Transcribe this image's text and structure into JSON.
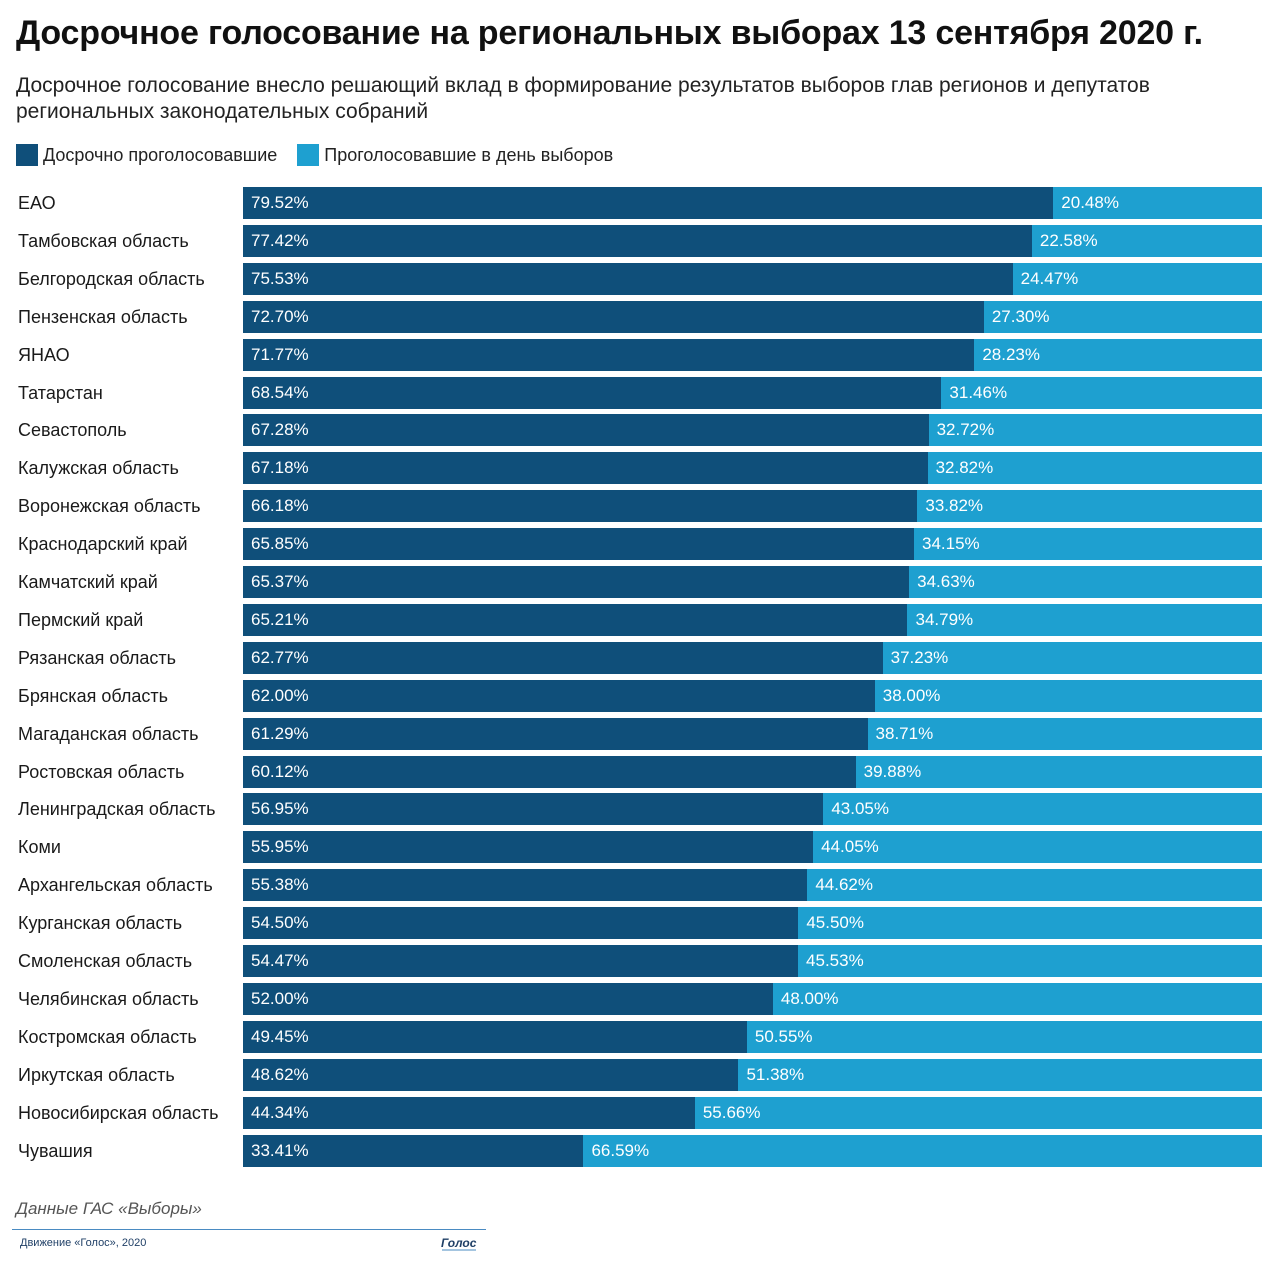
{
  "title": "Досрочное голосование на региональных выборах 13 сентября 2020 г.",
  "subtitle": "Досрочное голосование внесло решающий вклад в формирование результатов выборов глав регионов и депутатов региональных законодательных собраний",
  "colors": {
    "early": "#0f4f7a",
    "election_day": "#1ea0d0"
  },
  "legend": {
    "early_label": "Досрочно проголосовавшие",
    "day_label": "Проголосовавшие в день выборов"
  },
  "chart_data": {
    "type": "bar",
    "orientation": "horizontal",
    "stacked": true,
    "categories": [
      "ЕАО",
      "Тамбовская область",
      "Белгородская область",
      "Пензенская область",
      "ЯНАО",
      "Татарстан",
      "Севастополь",
      "Калужская область",
      "Воронежская область",
      "Краснодарский край",
      "Камчатский край",
      "Пермский край",
      "Рязанская область",
      "Брянская область",
      "Магаданская область",
      "Ростовская область",
      "Ленинградская область",
      "Коми",
      "Архангельская область",
      "Курганская область",
      "Смоленская область",
      "Челябинская область",
      "Костромская область",
      "Иркутская область",
      "Новосибирская область",
      "Чувашия"
    ],
    "series": [
      {
        "name": "Досрочно проголосовавшие",
        "values": [
          79.52,
          77.42,
          75.53,
          72.7,
          71.77,
          68.54,
          67.28,
          67.18,
          66.18,
          65.85,
          65.37,
          65.21,
          62.77,
          62.0,
          61.29,
          60.12,
          56.95,
          55.95,
          55.38,
          54.5,
          54.47,
          52.0,
          49.45,
          48.62,
          44.34,
          33.41
        ],
        "labels": [
          "79.52%",
          "77.42%",
          "75.53%",
          "72.70%",
          "71.77%",
          "68.54%",
          "67.28%",
          "67.18%",
          "66.18%",
          "65.85%",
          "65.37%",
          "65.21%",
          "62.77%",
          "62.00%",
          "61.29%",
          "60.12%",
          "56.95%",
          "55.95%",
          "55.38%",
          "54.50%",
          "54.47%",
          "52.00%",
          "49.45%",
          "48.62%",
          "44.34%",
          "33.41%"
        ]
      },
      {
        "name": "Проголосовавшие в день выборов",
        "values": [
          20.48,
          22.58,
          24.47,
          27.3,
          28.23,
          31.46,
          32.72,
          32.82,
          33.82,
          34.15,
          34.63,
          34.79,
          37.23,
          38.0,
          38.71,
          39.88,
          43.05,
          44.05,
          44.62,
          45.5,
          45.53,
          48.0,
          50.55,
          51.38,
          55.66,
          66.59
        ],
        "labels": [
          "20.48%",
          "22.58%",
          "24.47%",
          "27.30%",
          "28.23%",
          "31.46%",
          "32.72%",
          "32.82%",
          "33.82%",
          "34.15%",
          "34.63%",
          "34.79%",
          "37.23%",
          "38.00%",
          "38.71%",
          "39.88%",
          "43.05%",
          "44.05%",
          "44.62%",
          "45.50%",
          "45.53%",
          "48.00%",
          "50.55%",
          "51.38%",
          "55.66%",
          "66.59%"
        ]
      }
    ],
    "xlim": [
      0,
      100
    ],
    "grid": false,
    "legend_position": "top-left"
  },
  "source": "Данные ГАС «Выборы»",
  "footer": {
    "org": "Движение «Голос», 2020",
    "logo_text": "Голос"
  }
}
